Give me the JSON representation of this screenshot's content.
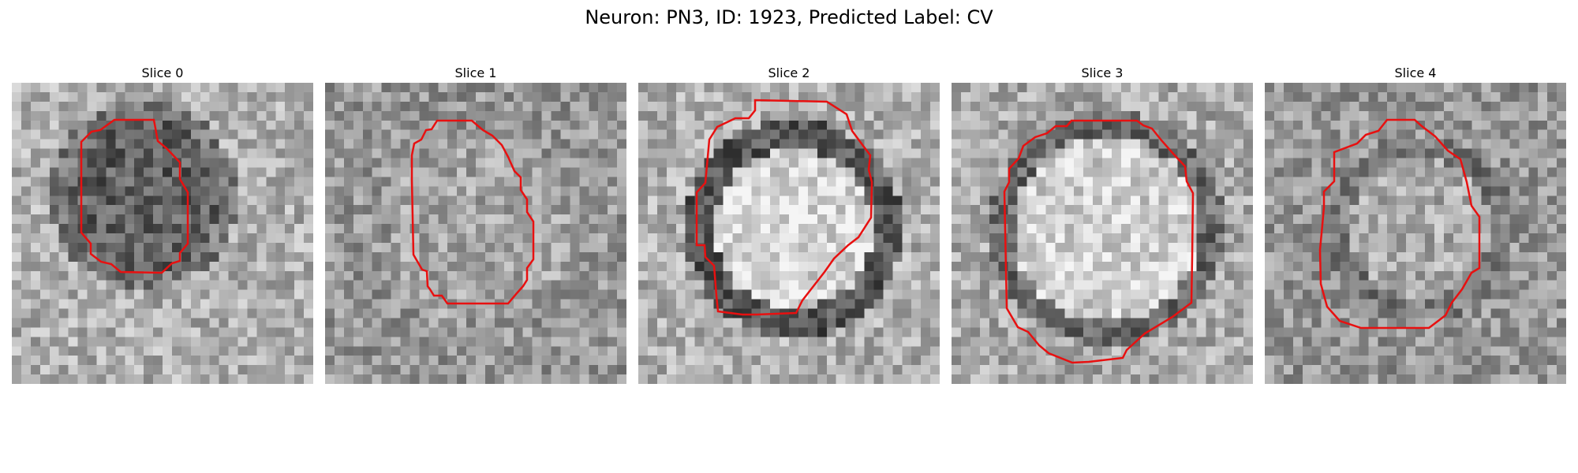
{
  "figure": {
    "title": "Neuron: PN3, ID: 1923, Predicted Label: CV"
  },
  "colors": {
    "contour": "#e81010",
    "background": "#ffffff"
  },
  "colormap": "grayscale",
  "slices": [
    {
      "title": "Slice 0"
    },
    {
      "title": "Slice 1"
    },
    {
      "title": "Slice 2"
    },
    {
      "title": "Slice 3"
    },
    {
      "title": "Slice 4"
    }
  ]
}
